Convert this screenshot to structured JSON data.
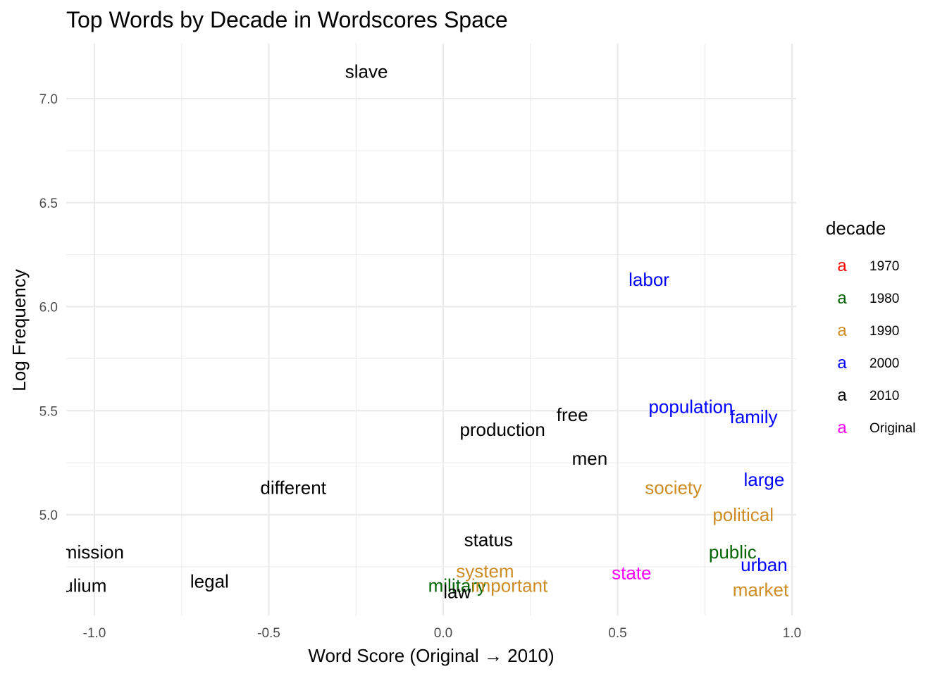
{
  "chart_data": {
    "type": "scatter",
    "title": "Top Words by Decade in Wordscores Space",
    "xlabel": "Word Score (Original → 2010)",
    "ylabel": "Log Frequency",
    "xlim": [
      -1.0,
      1.0
    ],
    "ylim": [
      4.6,
      7.25
    ],
    "x_ticks": [
      -1.0,
      -0.5,
      0.0,
      0.5,
      1.0
    ],
    "x_tick_labels": [
      "-1.0",
      "-0.5",
      "0.0",
      "0.5",
      "1.0"
    ],
    "y_ticks": [
      5.0,
      5.5,
      6.0,
      6.5,
      7.0
    ],
    "y_tick_labels": [
      "5.0",
      "5.5",
      "6.0",
      "6.5",
      "7.0"
    ],
    "grid": true,
    "legend": {
      "title": "decade",
      "position": "right",
      "key_glyph": "a",
      "entries": [
        {
          "label": "1970",
          "color": "#ff0000"
        },
        {
          "label": "1980",
          "color": "#006400"
        },
        {
          "label": "1990",
          "color": "#cd8c24"
        },
        {
          "label": "2000",
          "color": "#0000ff"
        },
        {
          "label": "2010",
          "color": "#000000"
        },
        {
          "label": "Original",
          "color": "#ff00ff"
        }
      ]
    },
    "points": [
      {
        "label": "slave",
        "x": -0.22,
        "y": 7.13,
        "decade": "2010"
      },
      {
        "label": "labor",
        "x": 0.59,
        "y": 6.13,
        "decade": "2000"
      },
      {
        "label": "population",
        "x": 0.71,
        "y": 5.52,
        "decade": "2000"
      },
      {
        "label": "family",
        "x": 0.89,
        "y": 5.47,
        "decade": "2000"
      },
      {
        "label": "free",
        "x": 0.37,
        "y": 5.48,
        "decade": "2010"
      },
      {
        "label": "production",
        "x": 0.17,
        "y": 5.41,
        "decade": "2010"
      },
      {
        "label": "men",
        "x": 0.42,
        "y": 5.27,
        "decade": "2010"
      },
      {
        "label": "different",
        "x": -0.43,
        "y": 5.13,
        "decade": "2010"
      },
      {
        "label": "society",
        "x": 0.66,
        "y": 5.13,
        "decade": "1990"
      },
      {
        "label": "large",
        "x": 0.92,
        "y": 5.17,
        "decade": "2000"
      },
      {
        "label": "political",
        "x": 0.86,
        "y": 5.0,
        "decade": "1990"
      },
      {
        "label": "status",
        "x": 0.13,
        "y": 4.88,
        "decade": "2010"
      },
      {
        "label": "manumission",
        "x": -1.07,
        "y": 4.82,
        "decade": "2010"
      },
      {
        "label": "public",
        "x": 0.83,
        "y": 4.82,
        "decade": "1980"
      },
      {
        "label": "urban",
        "x": 0.92,
        "y": 4.76,
        "decade": "2000"
      },
      {
        "label": "state",
        "x": 0.54,
        "y": 4.72,
        "decade": "Original"
      },
      {
        "label": "system",
        "x": 0.12,
        "y": 4.73,
        "decade": "1990"
      },
      {
        "label": "legal",
        "x": -0.67,
        "y": 4.68,
        "decade": "2010"
      },
      {
        "label": "peculium",
        "x": -1.07,
        "y": 4.66,
        "decade": "2010"
      },
      {
        "label": "military",
        "x": 0.04,
        "y": 4.66,
        "decade": "1980"
      },
      {
        "label": "important",
        "x": 0.19,
        "y": 4.66,
        "decade": "1990"
      },
      {
        "label": "law",
        "x": 0.04,
        "y": 4.63,
        "decade": "2010"
      },
      {
        "label": "market",
        "x": 0.91,
        "y": 4.64,
        "decade": "1990"
      }
    ]
  }
}
